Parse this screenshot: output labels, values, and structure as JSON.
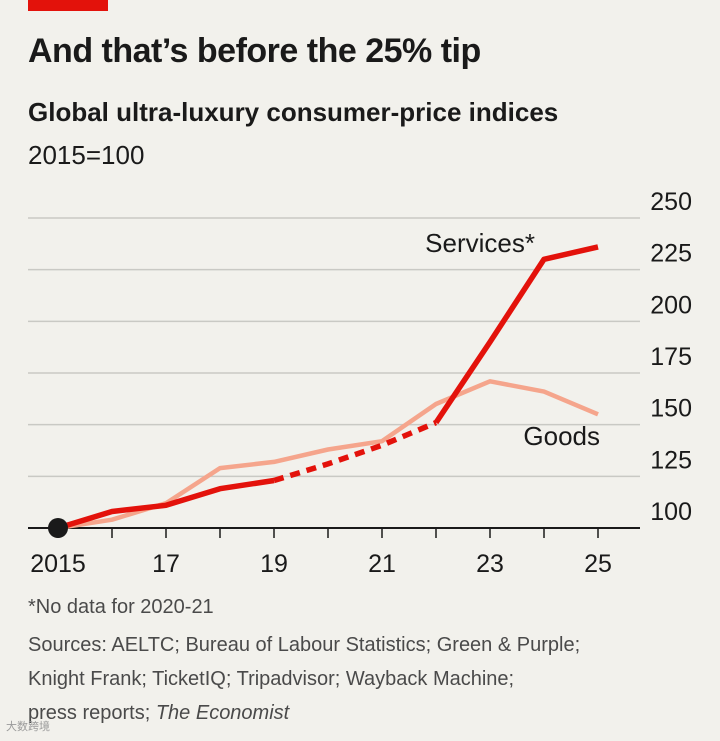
{
  "header": {
    "title": "And that’s before the 25% tip",
    "subtitle": "Global ultra-luxury consumer-price indices",
    "subtitle_base": "2015=100"
  },
  "chart_data": {
    "type": "line",
    "title": "And that’s before the 25% tip",
    "subtitle": "Global ultra-luxury consumer-price indices",
    "ylabel": "2015=100",
    "xlim": [
      2015,
      2025
    ],
    "ylim": [
      100,
      250
    ],
    "x_ticks": [
      2015,
      2016,
      2017,
      2018,
      2019,
      2020,
      2021,
      2022,
      2023,
      2024,
      2025
    ],
    "x_tick_labels": [
      "2015",
      "",
      "17",
      "",
      "19",
      "",
      "21",
      "",
      "23",
      "",
      "25"
    ],
    "y_ticks": [
      100,
      125,
      150,
      175,
      200,
      225,
      250
    ],
    "y_tick_labels": [
      "100",
      "125",
      "150",
      "175",
      "200",
      "225",
      "250"
    ],
    "grid": true,
    "colors": {
      "services": "#e3120b",
      "goods": "#f5a58c",
      "marker": "#1a1a1a"
    },
    "series": [
      {
        "name": "Goods",
        "x": [
          2015,
          2016,
          2017,
          2018,
          2019,
          2020,
          2021,
          2022,
          2023,
          2024,
          2025
        ],
        "values": [
          100,
          104,
          112,
          129,
          132,
          138,
          142,
          160,
          171,
          166,
          155
        ]
      },
      {
        "name": "Services*",
        "x": [
          2015,
          2016,
          2017,
          2018,
          2019,
          2020,
          2021,
          2022,
          2023,
          2024,
          2025
        ],
        "values": [
          100,
          108,
          111,
          119,
          123,
          131,
          140,
          151,
          190,
          230,
          236
        ],
        "dashed_segment": [
          2019,
          2022
        ]
      }
    ],
    "annotations": [
      {
        "text": "Services*",
        "series": "Services*"
      },
      {
        "text": "Goods",
        "series": "Goods"
      }
    ],
    "start_marker": {
      "x": 2015,
      "y": 100
    }
  },
  "footer": {
    "footnote": "*No data for 2020-21",
    "sources_line1": "Sources: AELTC; Bureau of Labour Statistics; Green & Purple;",
    "sources_line2": "Knight Frank; TicketIQ; Tripadvisor; Wayback Machine;",
    "sources_line3_prefix": "press reports;",
    "sources_line3_italic": "The Economist"
  },
  "watermark": "大数跨境"
}
